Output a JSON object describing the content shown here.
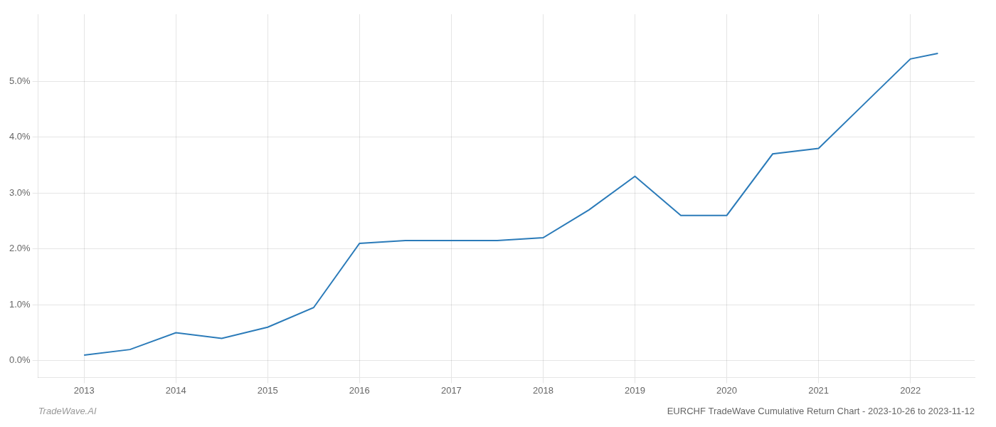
{
  "chart_data": {
    "type": "line",
    "title": "EURCHF TradeWave Cumulative Return Chart - 2023-10-26 to 2023-11-12",
    "annotations": [
      "TradeWave.AI"
    ],
    "x": [
      2013,
      2013.5,
      2014,
      2014.5,
      2015,
      2015.5,
      2016,
      2016.5,
      2017,
      2017.5,
      2018,
      2018.5,
      2019,
      2019.5,
      2020,
      2020.5,
      2021,
      2021.5,
      2022,
      2022.3
    ],
    "values": [
      0.001,
      0.002,
      0.005,
      0.004,
      0.006,
      0.0095,
      0.021,
      0.0215,
      0.0215,
      0.0215,
      0.022,
      0.027,
      0.033,
      0.026,
      0.026,
      0.037,
      0.038,
      0.046,
      0.054,
      0.055
    ],
    "color": "#2b7bb9",
    "xlim": [
      2012.5,
      2022.7
    ],
    "ylim": [
      -0.003,
      0.062
    ],
    "xticks": [
      2013,
      2014,
      2015,
      2016,
      2017,
      2018,
      2019,
      2020,
      2021,
      2022
    ],
    "yticks": [
      {
        "value": 0.0,
        "label": "0.0%"
      },
      {
        "value": 0.01,
        "label": "1.0%"
      },
      {
        "value": 0.02,
        "label": "2.0%"
      },
      {
        "value": 0.03,
        "label": "3.0%"
      },
      {
        "value": 0.04,
        "label": "4.0%"
      },
      {
        "value": 0.05,
        "label": "5.0%"
      }
    ],
    "grid": true
  }
}
